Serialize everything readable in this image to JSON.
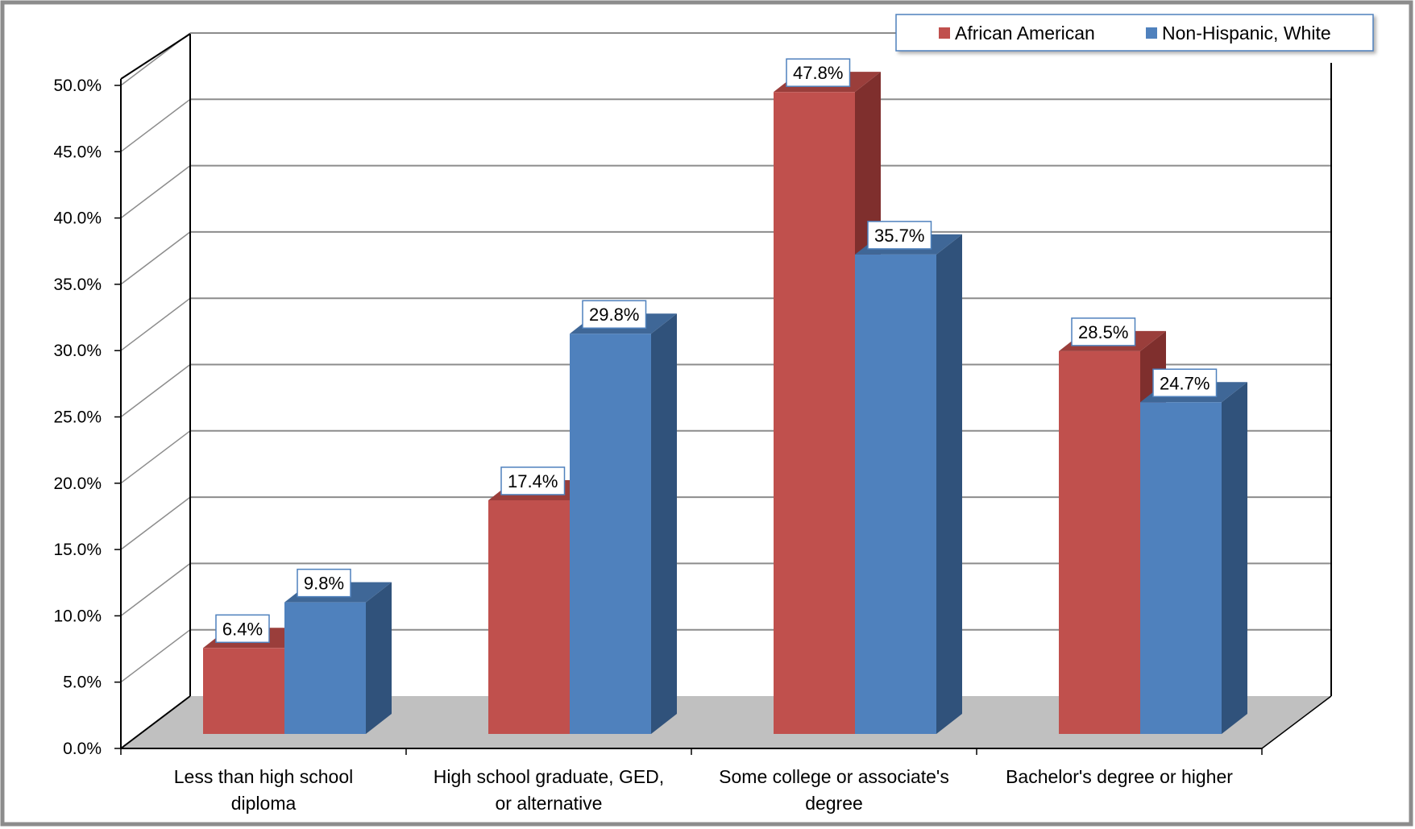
{
  "chart_data": {
    "type": "bar",
    "categories": [
      [
        "Less than high school",
        "diploma"
      ],
      [
        "High school graduate, GED,",
        "or alternative"
      ],
      [
        "Some college or associate's",
        "degree"
      ],
      [
        "Bachelor's degree or higher"
      ]
    ],
    "series": [
      {
        "name": "African American",
        "values": [
          6.4,
          17.4,
          47.8,
          28.5
        ],
        "labels": [
          "6.4%",
          "17.4%",
          "47.8%",
          "28.5%"
        ],
        "color": "#C0504D",
        "side_color": "#7F2F2D",
        "top_color": "#9A3E3B"
      },
      {
        "name": "Non-Hispanic, White",
        "values": [
          9.8,
          29.8,
          35.7,
          24.7
        ],
        "labels": [
          "9.8%",
          "29.8%",
          "35.7%",
          "24.7%"
        ],
        "color": "#4F81BD",
        "side_color": "#30527B",
        "top_color": "#3F6797"
      }
    ],
    "y_ticks": [
      "0.0%",
      "5.0%",
      "10.0%",
      "15.0%",
      "20.0%",
      "25.0%",
      "30.0%",
      "35.0%",
      "40.0%",
      "45.0%",
      "50.0%"
    ],
    "ylim": [
      0,
      50
    ],
    "grid": true,
    "legend_position": "top-right",
    "floor_color": "#C0C0C0",
    "frame_color": "#888888"
  }
}
